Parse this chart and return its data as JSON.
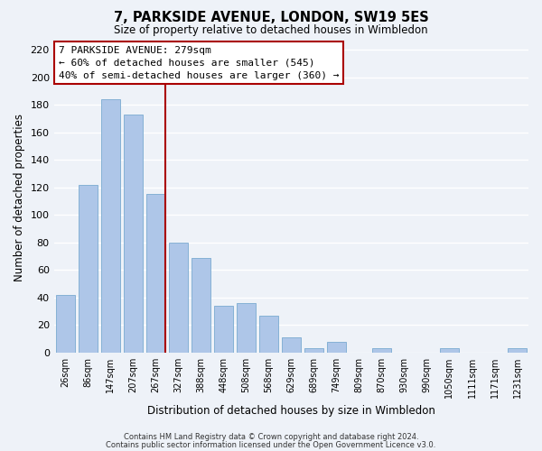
{
  "title": "7, PARKSIDE AVENUE, LONDON, SW19 5ES",
  "subtitle": "Size of property relative to detached houses in Wimbledon",
  "xlabel": "Distribution of detached houses by size in Wimbledon",
  "ylabel": "Number of detached properties",
  "categories": [
    "26sqm",
    "86sqm",
    "147sqm",
    "207sqm",
    "267sqm",
    "327sqm",
    "388sqm",
    "448sqm",
    "508sqm",
    "568sqm",
    "629sqm",
    "689sqm",
    "749sqm",
    "809sqm",
    "870sqm",
    "930sqm",
    "990sqm",
    "1050sqm",
    "1111sqm",
    "1171sqm",
    "1231sqm"
  ],
  "values": [
    42,
    122,
    184,
    173,
    115,
    80,
    69,
    34,
    36,
    27,
    11,
    3,
    8,
    0,
    3,
    0,
    0,
    3,
    0,
    0,
    3
  ],
  "bar_color_normal": "#aec6e8",
  "bar_color_highlight": "#c6d9f0",
  "ylim": [
    0,
    225
  ],
  "yticks": [
    0,
    20,
    40,
    60,
    80,
    100,
    120,
    140,
    160,
    180,
    200,
    220
  ],
  "annotation_title": "7 PARKSIDE AVENUE: 279sqm",
  "annotation_line1": "← 60% of detached houses are smaller (545)",
  "annotation_line2": "40% of semi-detached houses are larger (360) →",
  "annotation_box_color": "#ffffff",
  "annotation_box_edge": "#aa0000",
  "vline_color": "#aa0000",
  "footer1": "Contains HM Land Registry data © Crown copyright and database right 2024.",
  "footer2": "Contains public sector information licensed under the Open Government Licence v3.0.",
  "background_color": "#eef2f8",
  "grid_color": "#ffffff"
}
